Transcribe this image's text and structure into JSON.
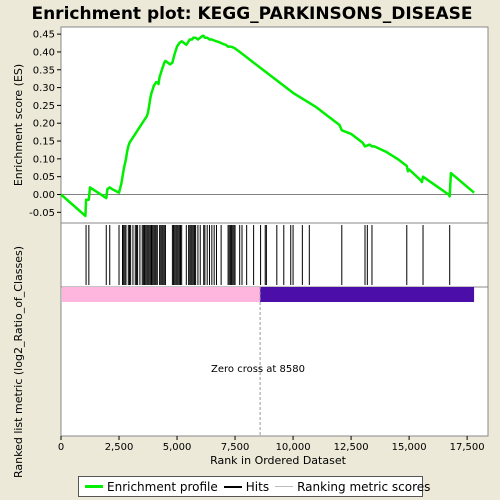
{
  "chart_data": {
    "type": "line",
    "title": "Enrichment plot: KEGG_PARKINSONS_DISEASE",
    "xlabel": "Rank in Ordered Dataset",
    "ylabel_top": "Enrichment score (ES)",
    "ylabel_bottom": "Ranked list metric (log2_Ratio_of_Classes)",
    "xlim": [
      0,
      18400
    ],
    "ylim": [
      -0.08,
      0.47
    ],
    "x_ticks": [
      0,
      2500,
      5000,
      7500,
      10000,
      12500,
      15000,
      17500
    ],
    "x_tick_labels": [
      "0",
      "2,500",
      "5,000",
      "7,500",
      "10,000",
      "12,500",
      "15,000",
      "17,500"
    ],
    "y_ticks": [
      -0.05,
      0.0,
      0.05,
      0.1,
      0.15,
      0.2,
      0.25,
      0.3,
      0.35,
      0.4,
      0.45
    ],
    "y_tick_labels": [
      "-0.05",
      "0.00",
      "0.05",
      "0.10",
      "0.15",
      "0.20",
      "0.25",
      "0.30",
      "0.35",
      "0.40",
      "0.45"
    ],
    "zero_cross_label": "Zero cross at 8580",
    "zero_cross": 8580,
    "list_end": 17800,
    "series": [
      {
        "name": "Enrichment profile",
        "color": "#00ee00",
        "x": [
          0,
          1050,
          1080,
          1200,
          1250,
          1950,
          2000,
          2100,
          2200,
          2500,
          2600,
          2650,
          2700,
          2750,
          2800,
          2850,
          2900,
          2950,
          3000,
          3050,
          3100,
          3200,
          3300,
          3400,
          3500,
          3550,
          3600,
          3650,
          3700,
          3750,
          3800,
          3850,
          3900,
          3950,
          4000,
          4050,
          4100,
          4150,
          4200,
          4250,
          4300,
          4350,
          4400,
          4450,
          4500,
          4600,
          4700,
          4800,
          4900,
          5000,
          5050,
          5100,
          5200,
          5300,
          5400,
          5500,
          5550,
          5650,
          5700,
          5800,
          5900,
          6000,
          6100,
          6150,
          6200,
          6300,
          6400,
          6500,
          6600,
          6700,
          6800,
          6900,
          7000,
          7100,
          7200,
          7300,
          7400,
          7500,
          7600,
          7700,
          7800,
          8000,
          8200,
          8400,
          8600,
          8800,
          9000,
          9500,
          10000,
          10500,
          11000,
          11500,
          12000,
          12100,
          12500,
          13000,
          13100,
          13300,
          13400,
          13500,
          14000,
          14500,
          14900,
          14950,
          15000,
          15500,
          15550,
          15600,
          16700,
          16750,
          16800,
          17800
        ],
        "y": [
          0.0,
          -0.06,
          -0.015,
          -0.015,
          0.02,
          -0.01,
          0.015,
          0.02,
          0.015,
          0.005,
          0.03,
          0.05,
          0.07,
          0.085,
          0.1,
          0.12,
          0.135,
          0.145,
          0.15,
          0.155,
          0.16,
          0.17,
          0.18,
          0.19,
          0.2,
          0.205,
          0.21,
          0.215,
          0.22,
          0.23,
          0.25,
          0.27,
          0.285,
          0.295,
          0.305,
          0.31,
          0.315,
          0.315,
          0.31,
          0.33,
          0.34,
          0.35,
          0.36,
          0.37,
          0.375,
          0.37,
          0.365,
          0.37,
          0.395,
          0.415,
          0.42,
          0.425,
          0.43,
          0.425,
          0.42,
          0.43,
          0.435,
          0.435,
          0.44,
          0.44,
          0.435,
          0.44,
          0.445,
          0.445,
          0.44,
          0.44,
          0.435,
          0.435,
          0.432,
          0.43,
          0.428,
          0.425,
          0.422,
          0.42,
          0.415,
          0.415,
          0.413,
          0.41,
          0.405,
          0.4,
          0.395,
          0.385,
          0.375,
          0.365,
          0.355,
          0.345,
          0.335,
          0.31,
          0.285,
          0.265,
          0.245,
          0.22,
          0.195,
          0.18,
          0.17,
          0.145,
          0.135,
          0.14,
          0.135,
          0.135,
          0.12,
          0.1,
          0.08,
          0.065,
          0.07,
          0.04,
          0.035,
          0.05,
          0.0,
          -0.005,
          0.06,
          0.005
        ]
      }
    ],
    "hits": [
      1080,
      1200,
      1950,
      2100,
      2500,
      2650,
      2700,
      2750,
      2800,
      2900,
      2950,
      3000,
      3100,
      3200,
      3250,
      3300,
      3400,
      3500,
      3550,
      3600,
      3650,
      3700,
      3750,
      3800,
      3850,
      3900,
      3950,
      4000,
      4050,
      4100,
      4150,
      4250,
      4300,
      4350,
      4400,
      4450,
      4500,
      4800,
      4850,
      4900,
      4950,
      5000,
      5050,
      5100,
      5150,
      5200,
      5400,
      5500,
      5550,
      5600,
      5650,
      5700,
      5750,
      5800,
      5900,
      6000,
      6150,
      6200,
      6300,
      6400,
      6500,
      6600,
      6700,
      6900,
      7200,
      7250,
      7300,
      7350,
      7400,
      7450,
      7500,
      7700,
      7800,
      8000,
      8300,
      8600,
      8800,
      8850,
      9300,
      9600,
      9900,
      10000,
      10400,
      10700,
      12100,
      13100,
      13200,
      13400,
      14900,
      15600,
      16750
    ],
    "legend": [
      "Enrichment profile",
      "Hits",
      "Ranking metric scores"
    ],
    "colors": {
      "profile": "#00ee00",
      "hits": "#000000",
      "positive_metric": "#ffb6de",
      "negative_metric": "#4b0ea8",
      "zero_line": "#808080",
      "background": "#ece9d8"
    }
  }
}
